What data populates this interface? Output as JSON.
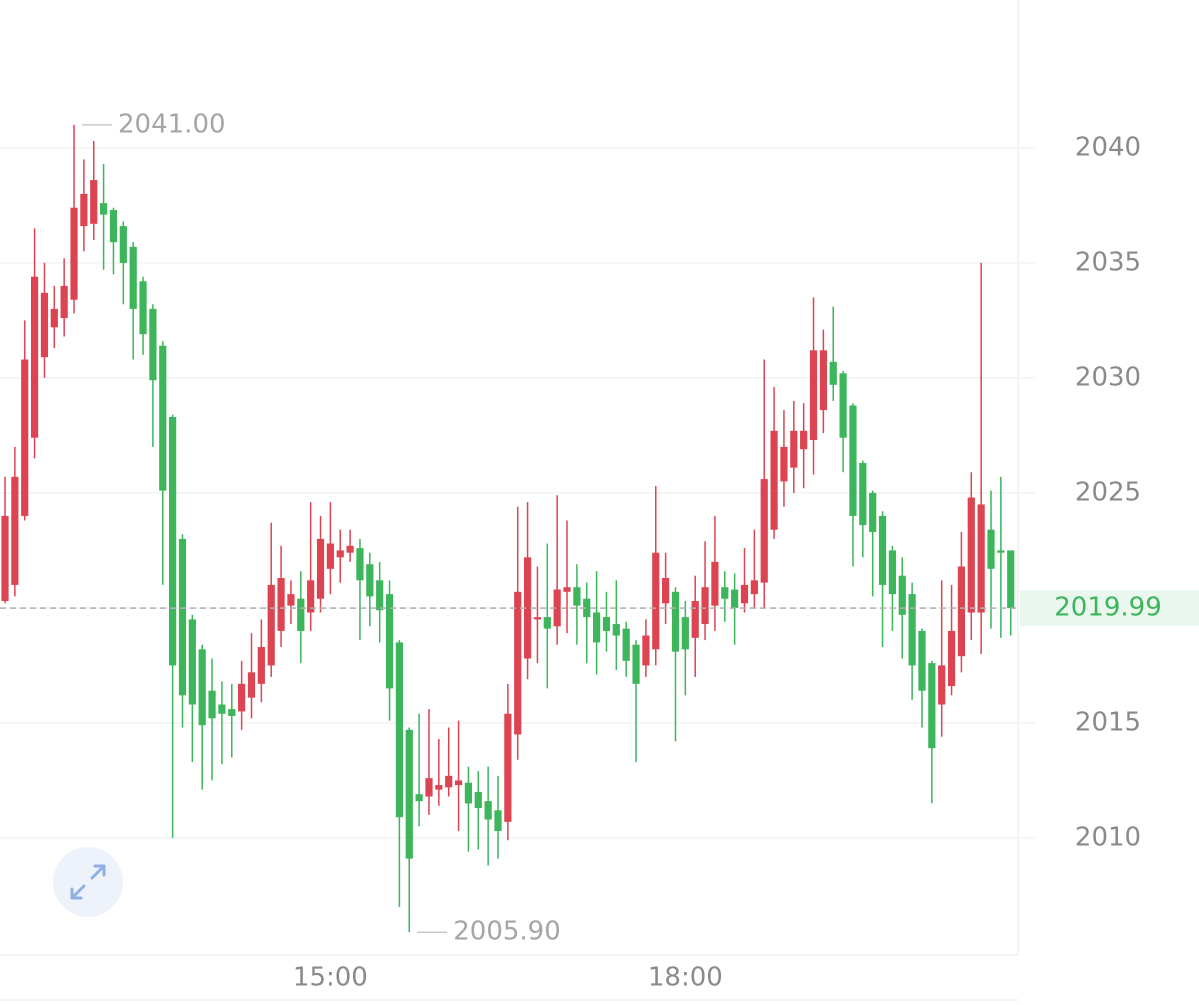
{
  "chart_data": {
    "type": "candlestick",
    "x": [
      null,
      null,
      null,
      null,
      null,
      null,
      null,
      null,
      null,
      null,
      null,
      null,
      null,
      null,
      null,
      null,
      null,
      null,
      null,
      null,
      null,
      null,
      null,
      null,
      null,
      null,
      null,
      null,
      null,
      null,
      null,
      null,
      null,
      "15:00",
      null,
      null,
      null,
      null,
      null,
      null,
      null,
      null,
      null,
      null,
      null,
      null,
      null,
      null,
      null,
      null,
      null,
      null,
      null,
      null,
      null,
      null,
      null,
      null,
      null,
      null,
      null,
      null,
      null,
      null,
      null,
      null,
      null,
      null,
      null,
      "18:00",
      null,
      null,
      null,
      null,
      null,
      null,
      null,
      null,
      null,
      null,
      null,
      null,
      null,
      null,
      null,
      null,
      null,
      null,
      null,
      null,
      null,
      null,
      null,
      null,
      null,
      null,
      null,
      null,
      null,
      null,
      null,
      null,
      null
    ],
    "open": [
      2020.3,
      2021,
      2024,
      2027.4,
      2030.9,
      2032.2,
      2032.6,
      2033.4,
      2036.6,
      2036.7,
      2037.6,
      2037.3,
      2036.6,
      2035.7,
      2034.2,
      2033,
      2031.4,
      2028.3,
      2023,
      2019.5,
      2018.2,
      2016.4,
      2015.8,
      2015.6,
      2015.5,
      2016.1,
      2016.7,
      2017.5,
      2019,
      2020.1,
      2020.4,
      2019.8,
      2020.4,
      2021.7,
      2022.2,
      2022.4,
      2022.6,
      2021.9,
      2021.2,
      2020.6,
      2018.5,
      2014.7,
      2011.9,
      2011.8,
      2012.1,
      2012.2,
      2012.3,
      2012.4,
      2012,
      2011.6,
      2011.2,
      2010.7,
      2014.5,
      2017.8,
      2019.5,
      2019.6,
      2019.2,
      2020.7,
      2020.9,
      2020.4,
      2019.8,
      2019.6,
      2019.3,
      2019.1,
      2018.4,
      2017.5,
      2018.2,
      2020.2,
      2020.7,
      2019.6,
      2018.7,
      2019.3,
      2020.1,
      2020.9,
      2020.8,
      2020.2,
      2020.6,
      2021.1,
      2023.4,
      2025.5,
      2026.1,
      2026.9,
      2027.3,
      2028.6,
      2030.7,
      2030.2,
      2028.8,
      2026.3,
      2025,
      2024,
      2022.5,
      2021.4,
      2020.6,
      2019,
      2017.6,
      2015.8,
      2016.6,
      2017.9,
      2019.8,
      2019.8,
      2023.4,
      2022.5,
      2022.5
    ],
    "high": [
      2025.7,
      2027,
      2032.5,
      2036.5,
      2035,
      2034,
      2035.2,
      2041,
      2039.5,
      2040.3,
      2039.3,
      2037.4,
      2036.8,
      2035.9,
      2034.4,
      2033.2,
      2031.6,
      2028.4,
      2023.2,
      2019.7,
      2018.4,
      2017.8,
      2016.8,
      2016.7,
      2017.7,
      2018.9,
      2019.5,
      2023.7,
      2022.7,
      2021.2,
      2021.6,
      2024.6,
      2024,
      2024.6,
      2023.4,
      2023.4,
      2023,
      2022.4,
      2022,
      2021.2,
      2018.6,
      2014.8,
      2015.4,
      2015.6,
      2014.3,
      2014.8,
      2015.1,
      2013.1,
      2012.9,
      2013.1,
      2012.7,
      2016.7,
      2024.4,
      2024.6,
      2021.8,
      2022.8,
      2024.9,
      2023.8,
      2021.9,
      2021.1,
      2021.6,
      2020.7,
      2021.2,
      2019.4,
      2018.6,
      2019.5,
      2025.3,
      2022.4,
      2020.9,
      2020.3,
      2021.4,
      2022.9,
      2024,
      2021.6,
      2021.5,
      2022.6,
      2023.4,
      2030.8,
      2029.6,
      2028.6,
      2029,
      2028.9,
      2033.5,
      2032.1,
      2033.1,
      2030.3,
      2028.9,
      2026.4,
      2025.1,
      2024.2,
      2022.7,
      2022.2,
      2021.1,
      2019.1,
      2017.7,
      2021.2,
      2021,
      2023.3,
      2025.9,
      2035,
      2025.1,
      2025.7,
      2022.5
    ],
    "low": [
      2020.2,
      2020.5,
      2023.8,
      2026.5,
      2030,
      2031.3,
      2031.8,
      2032.8,
      2035.5,
      2036,
      2034.7,
      2034.5,
      2033.2,
      2030.8,
      2031,
      2027,
      2021,
      2010,
      2014.8,
      2013.3,
      2012.1,
      2012.5,
      2013.2,
      2013.5,
      2014.7,
      2015.2,
      2015.9,
      2017,
      2018.3,
      2019.3,
      2017.6,
      2019,
      2019.8,
      2020.6,
      2021.1,
      2022,
      2018.6,
      2019.2,
      2018.5,
      2015.1,
      2007,
      2005.9,
      2010.5,
      2011,
      2011.4,
      2011.8,
      2010.3,
      2009.4,
      2009.5,
      2008.8,
      2009.1,
      2009.9,
      2013.4,
      2016.9,
      2017.6,
      2016.5,
      2018.4,
      2018.9,
      2018.4,
      2017.6,
      2017.1,
      2018.1,
      2017.3,
      2017,
      2013.3,
      2017,
      2017.5,
      2019.3,
      2014.2,
      2016.2,
      2017,
      2018.6,
      2019,
      2019.4,
      2018.4,
      2019.8,
      2020,
      2020,
      2023,
      2024.4,
      2025,
      2025.2,
      2025.8,
      2027.6,
      2029,
      2025.9,
      2021.8,
      2022.2,
      2020.5,
      2018.3,
      2019,
      2017.8,
      2016,
      2014.8,
      2011.5,
      2014.4,
      2016.2,
      2017.2,
      2018.6,
      2018,
      2019.1,
      2018.7,
      2018.8
    ],
    "close": [
      2024,
      2025.7,
      2030.8,
      2034.4,
      2033.7,
      2033,
      2034,
      2037.4,
      2038,
      2038.6,
      2037.1,
      2035.9,
      2035,
      2033,
      2031.9,
      2029.9,
      2025.1,
      2017.5,
      2016.2,
      2015.8,
      2014.9,
      2015.2,
      2015.4,
      2015.3,
      2016.7,
      2017.2,
      2018.3,
      2021,
      2021.3,
      2020.6,
      2019,
      2021.2,
      2023,
      2022.8,
      2022.5,
      2022.7,
      2021.2,
      2020.5,
      2019.9,
      2016.5,
      2010.9,
      2009.1,
      2011.6,
      2012.6,
      2012.3,
      2012.7,
      2012.5,
      2011.5,
      2011.3,
      2010.8,
      2010.3,
      2015.4,
      2020.7,
      2022.2,
      2019.6,
      2019.1,
      2020.8,
      2020.9,
      2020.1,
      2019.6,
      2018.5,
      2019,
      2018.8,
      2017.7,
      2016.7,
      2018.8,
      2022.4,
      2021.3,
      2018.1,
      2018.2,
      2020.3,
      2020.9,
      2022,
      2020.4,
      2020,
      2021,
      2021.2,
      2025.6,
      2027.7,
      2027,
      2027.7,
      2027.7,
      2031.2,
      2031.2,
      2029.7,
      2027.4,
      2024,
      2023.6,
      2023.3,
      2021,
      2020.6,
      2019.7,
      2017.5,
      2016.4,
      2013.9,
      2017.5,
      2019,
      2021.8,
      2024.8,
      2024.5,
      2021.7,
      2022.4,
      2019.99
    ],
    "up_color": "#dc4452",
    "down_color": "#3db55b",
    "ylim": [
      2004.91,
      2046.43
    ],
    "yticks": [
      2010,
      2015,
      2020,
      2025,
      2030,
      2035,
      2040
    ],
    "grid": true,
    "annotations": [
      {
        "value": 2041,
        "label": "2041.00"
      },
      {
        "value": 2005.9,
        "label": "2005.90"
      }
    ],
    "last_price": 2019.99
  }
}
